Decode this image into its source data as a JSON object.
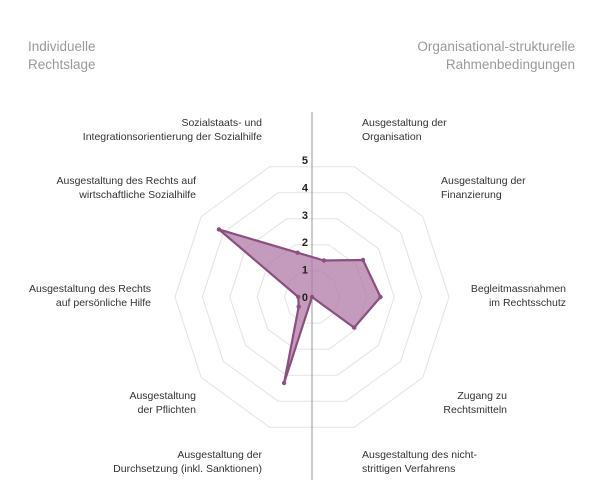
{
  "corner_labels": {
    "left": [
      "Individuelle",
      "Rechtslage"
    ],
    "right": [
      "Organisational-strukturelle",
      "Rahmenbedingungen"
    ]
  },
  "colors": {
    "series_stroke": "#8b4f80",
    "series_fill": "#b07aa6",
    "grid": "#e3e3e3",
    "divider": "#9a9a9a"
  },
  "chart_data": {
    "type": "radar",
    "scale": {
      "min": 0,
      "max": 5,
      "ticks": [
        0,
        1,
        2,
        3,
        4,
        5
      ]
    },
    "categories": [
      {
        "lines": [
          "Ausgestaltung der",
          "Organisation"
        ]
      },
      {
        "lines": [
          "Ausgestaltung der",
          "Finanzierung"
        ]
      },
      {
        "lines": [
          "Begleitmassnahmen",
          "im Rechtsschutz"
        ]
      },
      {
        "lines": [
          "Zugang zu",
          "Rechtsmitteln"
        ]
      },
      {
        "lines": [
          "Ausgestaltung des nicht-",
          "strittigen Verfahrens"
        ]
      },
      {
        "lines": [
          "Ausgestaltung der",
          "Durchsetzung (inkl. Sanktionen)"
        ]
      },
      {
        "lines": [
          "Ausgestaltung",
          "der Pflichten"
        ]
      },
      {
        "lines": [
          "Ausgestaltung des Rechts",
          "auf persönliche Hilfe"
        ]
      },
      {
        "lines": [
          "Ausgestaltung des Rechts auf",
          "wirtschaftliche Sozialhilfe"
        ]
      },
      {
        "lines": [
          "Sozialstaats- und",
          "Integrationsorientierung der Sozialhilfe"
        ]
      }
    ],
    "series": [
      {
        "values": [
          1.4,
          2.3,
          2.5,
          1.9,
          0,
          3.3,
          0.6,
          0.5,
          4.2,
          1.7
        ]
      }
    ],
    "grid": true,
    "legend": "none"
  }
}
